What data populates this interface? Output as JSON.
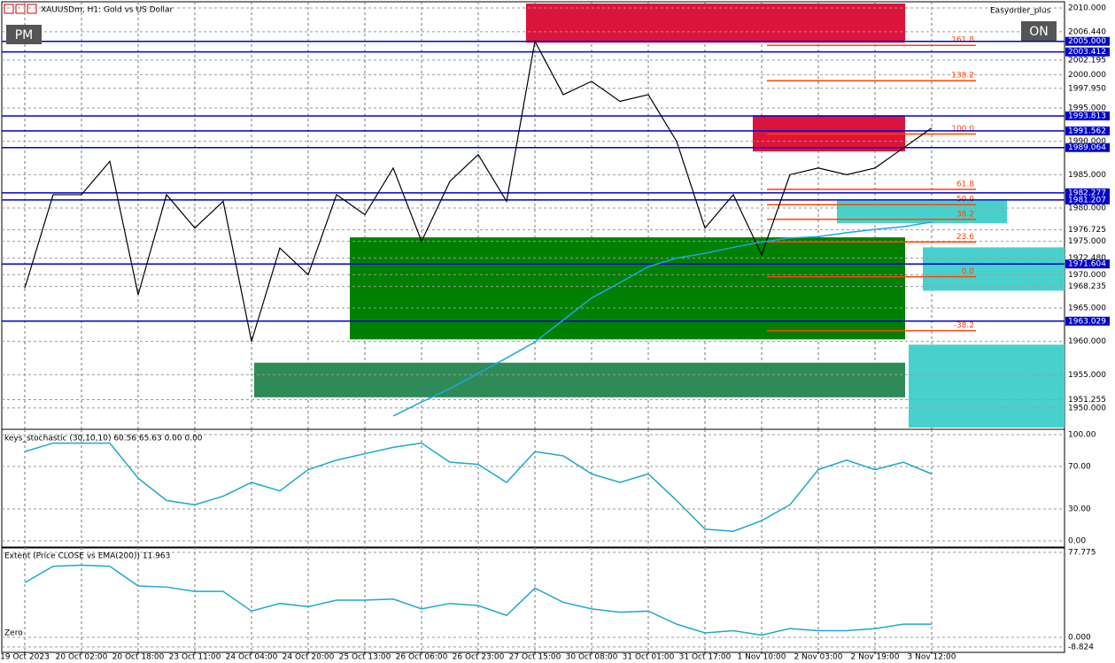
{
  "header": {
    "symbol": "XAUUSDm, H1:  Gold vs US Dollar",
    "expert": "Easyorder_plus",
    "left_button": "PM",
    "right_button": "ON"
  },
  "chart_data": [
    {
      "type": "line",
      "grid": true,
      "series": [
        {
          "color": "#000000",
          "values": [
            1968,
            1982,
            1982,
            1987,
            1967,
            1982,
            1977,
            1981,
            1960,
            1974,
            1970,
            1982,
            1979,
            1986,
            1975,
            1984,
            1988,
            1981,
            2005,
            1997,
            1999,
            1996,
            1997,
            1990,
            1977,
            1982,
            1973,
            1985,
            1986,
            1985,
            1986,
            1989,
            1992
          ]
        },
        {
          "color": "#1ea7e0",
          "values": [
            null,
            null,
            null,
            null,
            null,
            null,
            null,
            null,
            null,
            null,
            null,
            null,
            null,
            1948.8,
            1950.9,
            1952.9,
            1955.2,
            1957.5,
            1959.9,
            1963.2,
            1966.5,
            1968.8,
            1971.2,
            1972.5,
            1973.2,
            1974.1,
            1974.9,
            1975.5,
            1975.7,
            1976.3,
            1976.8,
            1977.2,
            1977.9
          ]
        }
      ],
      "ylim": [
        1947.07,
        2010.67
      ],
      "yticks": [
        {
          "value": 2010,
          "label": "2010.000"
        },
        {
          "value": 2006.44,
          "label": "2006.440"
        },
        2002.195,
        {
          "value": 2000,
          "label": "2000.000"
        },
        {
          "value": 1997.95,
          "label": "1997.950"
        },
        {
          "value": 1995,
          "label": "1995.000"
        },
        {
          "value": 1990,
          "label": "1990.000"
        },
        {
          "value": 1985,
          "label": "1985.000"
        },
        {
          "value": 1980,
          "label": "1980.000"
        },
        1976.725,
        {
          "value": 1975,
          "label": "1975.000"
        },
        {
          "value": 1972.48,
          "label": "1972.480"
        },
        {
          "value": 1970,
          "label": "1970.000"
        },
        1968.235,
        {
          "value": 1965,
          "label": "1965.000"
        },
        {
          "value": 1960,
          "label": "1960.000"
        },
        {
          "value": 1955,
          "label": "1955.000"
        },
        1951.255,
        {
          "value": 1950,
          "label": "1950.000"
        }
      ],
      "levels": [
        {
          "value": 2005,
          "label": "2005.000"
        },
        2003.412,
        1993.813,
        1991.562,
        1989.064,
        1982.277,
        1981.207,
        1971.604,
        1963.029
      ],
      "fib_levels": [
        {
          "value": 2004.4,
          "label": "161.8"
        },
        {
          "value": 1999.1,
          "label": "138.2"
        },
        {
          "value": 1991.1,
          "label": "100.0"
        },
        {
          "value": 1982.8,
          "label": "61.8"
        },
        {
          "value": 1980.5,
          "label": "50.0"
        },
        {
          "value": 1978.3,
          "label": "38.2"
        },
        {
          "value": 1974.9,
          "label": "23.6"
        },
        {
          "value": 1969.7,
          "label": "0.0"
        },
        {
          "value": 1961.6,
          "label": "-38.2"
        }
      ],
      "zones": [
        {
          "from": 2004.8,
          "to": 2010.67,
          "color": "#dc143c"
        },
        {
          "from": 1988.5,
          "to": 1993.9,
          "color": "#dc143c"
        },
        {
          "from": 1960.3,
          "to": 1975.6,
          "color": "#008000"
        },
        {
          "from": 1951.6,
          "to": 1956.8,
          "color": "#2e8b57"
        },
        {
          "from": 1977.7,
          "to": 1981.1,
          "color": "#48d1cc"
        },
        {
          "from": 1967.6,
          "to": 1974.1,
          "color": "#48d1cc"
        },
        {
          "from": 1947.07,
          "to": 1959.5,
          "color": "#48d1cc"
        }
      ]
    },
    {
      "type": "line",
      "title": "keys_stochastic (30,10,10) 60.56 65.63 0.00 0.00",
      "series": [
        {
          "color": "#1fa8c9",
          "values": [
            84,
            92,
            92,
            92,
            59,
            38,
            34,
            42,
            55,
            47,
            67,
            76,
            82,
            88,
            92,
            74,
            72,
            55,
            84,
            80,
            63,
            55,
            63,
            38,
            11,
            9,
            19,
            34,
            67,
            76,
            67,
            74,
            63
          ]
        }
      ],
      "ylim": [
        -5,
        103.3
      ],
      "yticks": [
        {
          "value": 100,
          "label": "100.00"
        },
        {
          "value": 70,
          "label": "70.00"
        },
        {
          "value": 30,
          "label": "30.00"
        },
        {
          "value": 0,
          "label": "0.00"
        }
      ]
    },
    {
      "type": "line",
      "title": "Extent (Price CLOSE vs EMA(200)) 11.963",
      "annotation": "Zero",
      "categories": [
        "19 Oct 2023",
        null,
        "20 Oct 02:00",
        null,
        "20 Oct 18:00",
        null,
        "23 Oct 11:00",
        null,
        "24 Oct 04:00",
        null,
        "24 Oct 20:00",
        null,
        "25 Oct 13:00",
        null,
        "26 Oct 06:00",
        null,
        "26 Oct 23:00",
        null,
        "27 Oct 15:00",
        null,
        "30 Oct 08:00",
        null,
        "31 Oct 01:00",
        null,
        "31 Oct 17:00",
        null,
        "1 Nov 10:00",
        null,
        "2 Nov 03:00",
        null,
        "2 Nov 19:00",
        null,
        "3 Nov 12:00"
      ],
      "series": [
        {
          "color": "#1fa8c9",
          "values": [
            50,
            65,
            66,
            65,
            47,
            46,
            42,
            42,
            24,
            31,
            28,
            34,
            34,
            35,
            26,
            31,
            29,
            20,
            45,
            32,
            26,
            23,
            24,
            12,
            4,
            6,
            2,
            8,
            6,
            6,
            8,
            12,
            12
          ]
        }
      ],
      "ylim": [
        -12.2,
        81
      ],
      "yticks": [
        77.775,
        {
          "value": 0,
          "label": "0.000"
        },
        -8.824
      ]
    }
  ]
}
